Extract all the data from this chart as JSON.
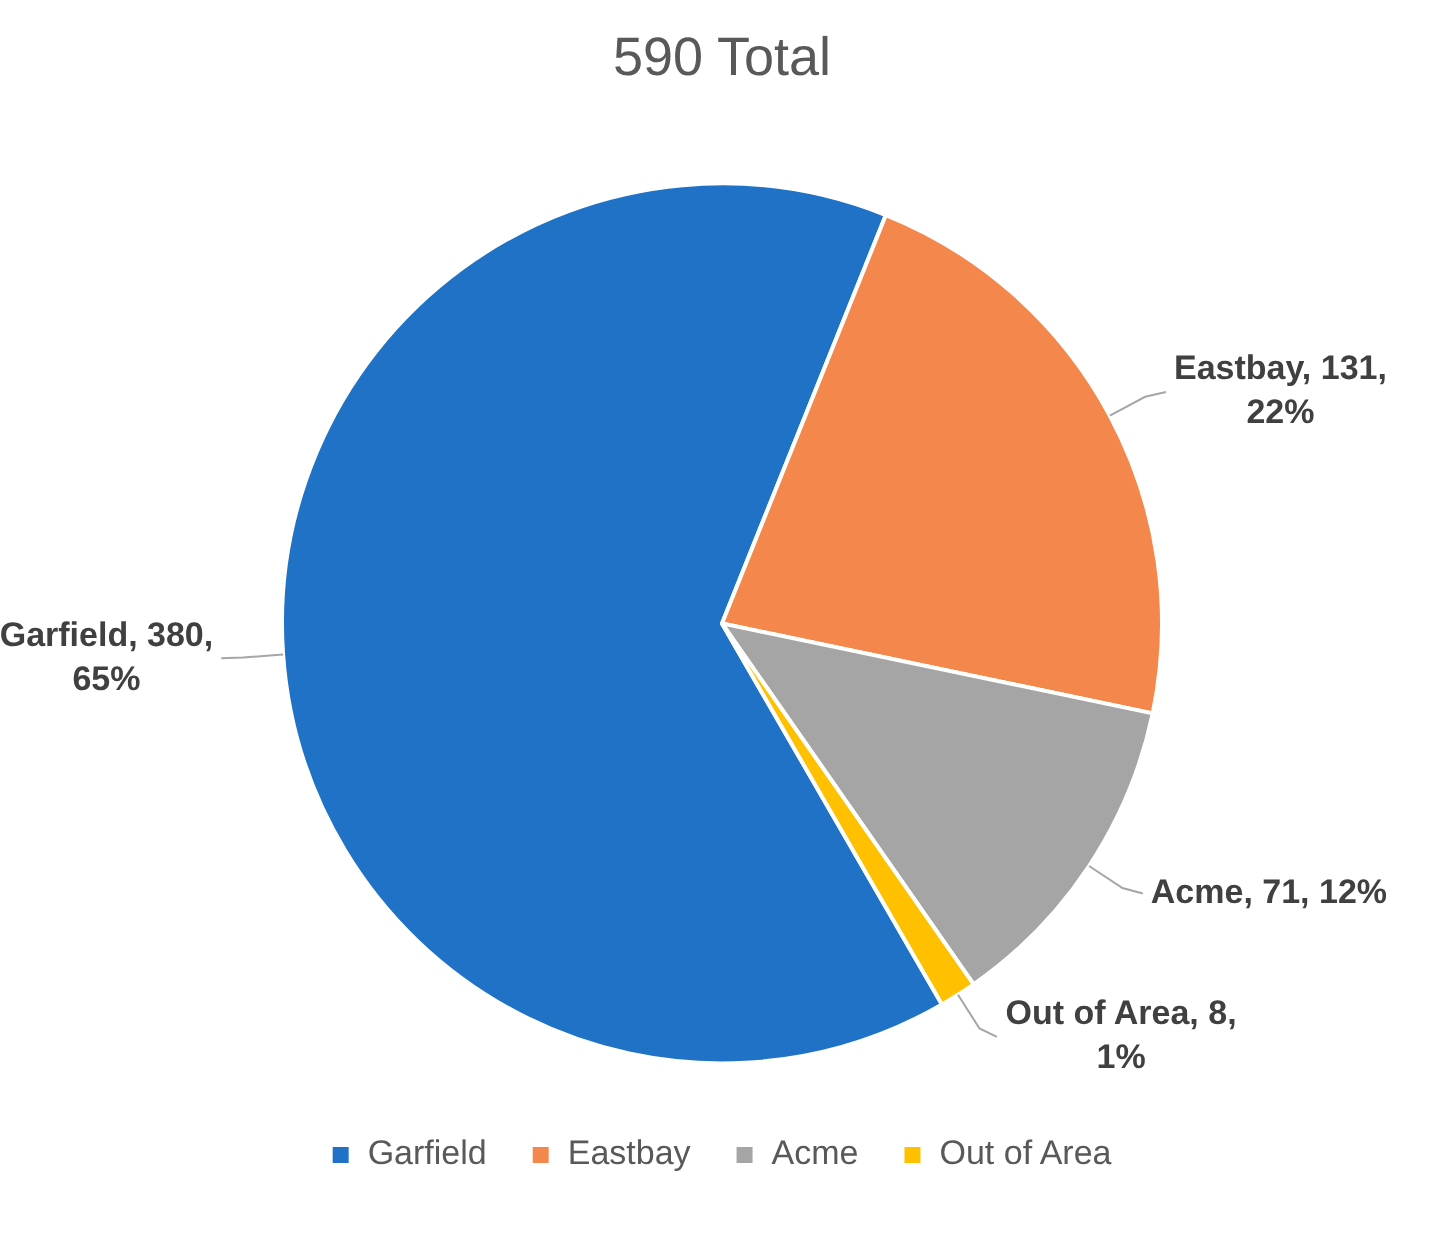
{
  "chart_data": {
    "type": "pie",
    "title": "590 Total",
    "categories": [
      "Garfield",
      "Eastbay",
      "Acme",
      "Out of Area"
    ],
    "values": [
      380,
      131,
      71,
      8
    ],
    "colors": [
      "#1f72c6",
      "#f4874b",
      "#a5a5a5",
      "#ffc000"
    ],
    "value_labels": [
      "Garfield, 380, 65%",
      "Eastbay, 131, 22%",
      "Acme, 71, 12%",
      "Out of Area, 8, 1%"
    ],
    "legend": "bottom"
  }
}
